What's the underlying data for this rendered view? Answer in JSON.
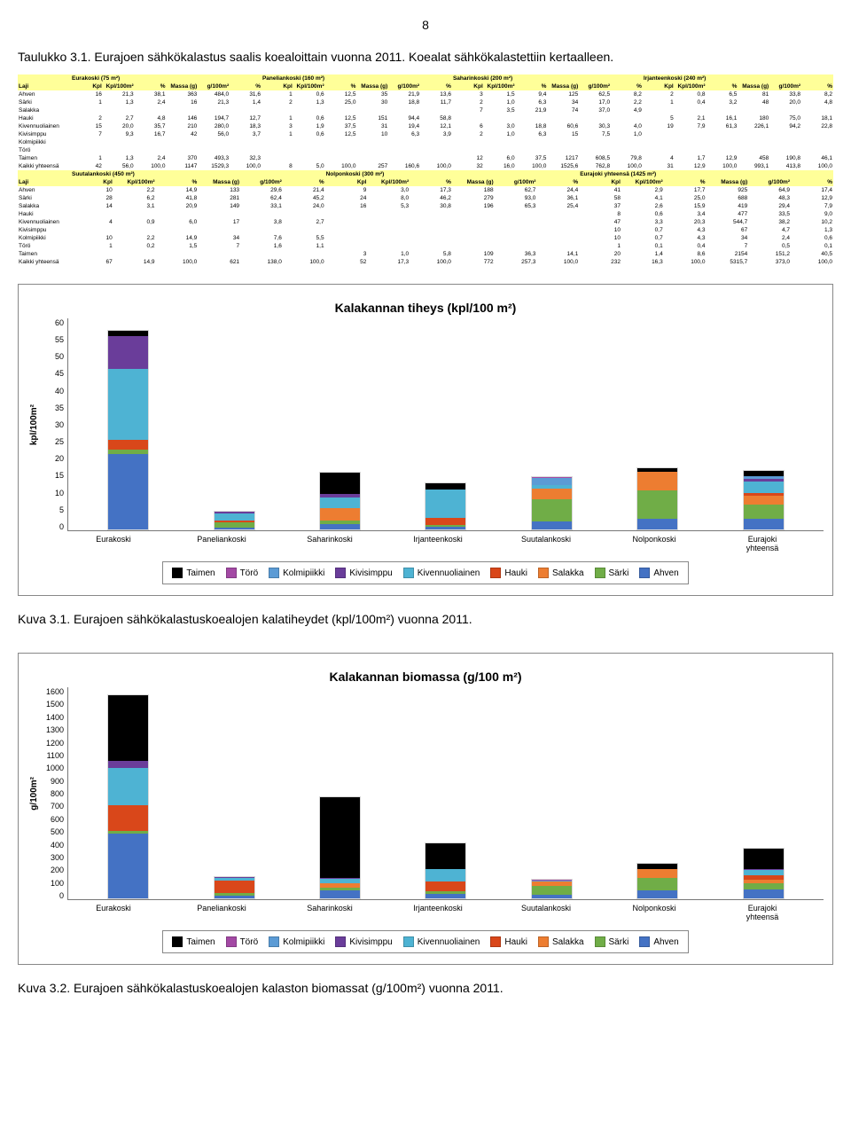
{
  "page_number": "8",
  "table_caption": "Taulukko 3.1. Eurajoen sähkökalastus saalis koealoittain vuonna 2011. Koealat sähkökalastettiin kertaalleen.",
  "figure1_caption": "Kuva 3.1. Eurajoen sähkökalastuskoealojen kalatiheydet (kpl/100m²) vuonna 2011.",
  "figure2_caption": "Kuva 3.2. Eurajoen sähkökalastuskoealojen kalaston biomassat (g/100m²) vuonna 2011.",
  "table": {
    "upper": {
      "groups": [
        {
          "name": "Eurakoski (75 m²)"
        },
        {
          "name": "Paneliankoski (160 m²)"
        },
        {
          "name": "Saharinkoski (200 m²)"
        },
        {
          "name": "Irjanteenkoski (240 m²)"
        }
      ],
      "cols": [
        "Kpl",
        "Kpl/100m²",
        "%",
        "Massa (g)",
        "g/100m²",
        "%"
      ],
      "rows": [
        {
          "label": "Ahven",
          "v": [
            [
              "16",
              "21,3",
              "38,1",
              "363",
              "484,0",
              "31,6"
            ],
            [
              "1",
              "0,6",
              "12,5",
              "35",
              "21,9",
              "13,6"
            ],
            [
              "3",
              "1,5",
              "9,4",
              "125",
              "62,5",
              "8,2"
            ],
            [
              "2",
              "0,8",
              "6,5",
              "81",
              "33,8",
              "8,2"
            ]
          ]
        },
        {
          "label": "Särki",
          "v": [
            [
              "1",
              "1,3",
              "2,4",
              "16",
              "21,3",
              "1,4"
            ],
            [
              "2",
              "1,3",
              "25,0",
              "30",
              "18,8",
              "11,7"
            ],
            [
              "2",
              "1,0",
              "6,3",
              "34",
              "17,0",
              "2,2"
            ],
            [
              "1",
              "0,4",
              "3,2",
              "48",
              "20,0",
              "4,8"
            ]
          ]
        },
        {
          "label": "Salakka",
          "v": [
            [
              "",
              "",
              "",
              "",
              "",
              ""
            ],
            [
              "",
              "",
              "",
              "",
              "",
              ""
            ],
            [
              "7",
              "3,5",
              "21,9",
              "74",
              "37,0",
              "4,9"
            ],
            [
              "",
              "",
              "",
              "",
              "",
              ""
            ]
          ]
        },
        {
          "label": "Hauki",
          "v": [
            [
              "2",
              "2,7",
              "4,8",
              "146",
              "194,7",
              "12,7"
            ],
            [
              "1",
              "0,6",
              "12,5",
              "151",
              "94,4",
              "58,8"
            ],
            [
              "",
              "",
              "",
              "",
              "",
              ""
            ],
            [
              "5",
              "2,1",
              "16,1",
              "180",
              "75,0",
              "18,1"
            ]
          ]
        },
        {
          "label": "Kivennuoliainen",
          "v": [
            [
              "15",
              "20,0",
              "35,7",
              "210",
              "280,0",
              "18,3"
            ],
            [
              "3",
              "1,9",
              "37,5",
              "31",
              "19,4",
              "12,1"
            ],
            [
              "6",
              "3,0",
              "18,8",
              "60,6",
              "30,3",
              "4,0"
            ],
            [
              "19",
              "7,9",
              "61,3",
              "226,1",
              "94,2",
              "22,8"
            ]
          ]
        },
        {
          "label": "Kivisimppu",
          "v": [
            [
              "7",
              "9,3",
              "16,7",
              "42",
              "56,0",
              "3,7"
            ],
            [
              "1",
              "0,6",
              "12,5",
              "10",
              "6,3",
              "3,9"
            ],
            [
              "2",
              "1,0",
              "6,3",
              "15",
              "7,5",
              "1,0"
            ],
            [
              "",
              "",
              "",
              "",
              "",
              ""
            ]
          ]
        },
        {
          "label": "Kolmipiikki",
          "v": [
            [
              "",
              "",
              "",
              "",
              "",
              ""
            ],
            [
              "",
              "",
              "",
              "",
              "",
              ""
            ],
            [
              "",
              "",
              "",
              "",
              "",
              ""
            ],
            [
              "",
              "",
              "",
              "",
              "",
              ""
            ]
          ]
        },
        {
          "label": "Törö",
          "v": [
            [
              "",
              "",
              "",
              "",
              "",
              ""
            ],
            [
              "",
              "",
              "",
              "",
              "",
              ""
            ],
            [
              "",
              "",
              "",
              "",
              "",
              ""
            ],
            [
              "",
              "",
              "",
              "",
              "",
              ""
            ]
          ]
        },
        {
          "label": "Taimen",
          "v": [
            [
              "1",
              "1,3",
              "2,4",
              "370",
              "493,3",
              "32,3"
            ],
            [
              "",
              "",
              "",
              "",
              "",
              ""
            ],
            [
              "12",
              "6,0",
              "37,5",
              "1217",
              "608,5",
              "79,8"
            ],
            [
              "4",
              "1,7",
              "12,9",
              "458",
              "190,8",
              "46,1"
            ]
          ]
        },
        {
          "label": "Kaikki yhteensä",
          "v": [
            [
              "42",
              "56,0",
              "100,0",
              "1147",
              "1529,3",
              "100,0"
            ],
            [
              "8",
              "5,0",
              "100,0",
              "257",
              "160,6",
              "100,0"
            ],
            [
              "32",
              "16,0",
              "100,0",
              "1525,6",
              "762,8",
              "100,0"
            ],
            [
              "31",
              "12,9",
              "100,0",
              "993,1",
              "413,8",
              "100,0"
            ]
          ]
        }
      ]
    },
    "lower": {
      "groups": [
        {
          "name": "Suutalankoski (450 m²)"
        },
        {
          "name": "Nolponkoski (300 m²)"
        },
        {
          "name": "Eurajoki yhteensä (1425 m²)"
        }
      ],
      "cols": [
        "Kpl",
        "Kpl/100m²",
        "%",
        "Massa (g)",
        "g/100m²",
        "%"
      ],
      "rows": [
        {
          "label": "Ahven",
          "v": [
            [
              "10",
              "2,2",
              "14,9",
              "133",
              "29,6",
              "21,4"
            ],
            [
              "9",
              "3,0",
              "17,3",
              "188",
              "62,7",
              "24,4"
            ],
            [
              "41",
              "2,9",
              "17,7",
              "925",
              "64,9",
              "17,4"
            ]
          ]
        },
        {
          "label": "Särki",
          "v": [
            [
              "28",
              "6,2",
              "41,8",
              "281",
              "62,4",
              "45,2"
            ],
            [
              "24",
              "8,0",
              "46,2",
              "279",
              "93,0",
              "36,1"
            ],
            [
              "58",
              "4,1",
              "25,0",
              "688",
              "48,3",
              "12,9"
            ]
          ]
        },
        {
          "label": "Salakka",
          "v": [
            [
              "14",
              "3,1",
              "20,9",
              "149",
              "33,1",
              "24,0"
            ],
            [
              "16",
              "5,3",
              "30,8",
              "196",
              "65,3",
              "25,4"
            ],
            [
              "37",
              "2,6",
              "15,9",
              "419",
              "29,4",
              "7,9"
            ]
          ]
        },
        {
          "label": "Hauki",
          "v": [
            [
              "",
              "",
              "",
              "",
              "",
              ""
            ],
            [
              "",
              "",
              "",
              "",
              "",
              ""
            ],
            [
              "8",
              "0,6",
              "3,4",
              "477",
              "33,5",
              "9,0"
            ]
          ]
        },
        {
          "label": "Kivennuoliainen",
          "v": [
            [
              "4",
              "0,9",
              "6,0",
              "17",
              "3,8",
              "2,7"
            ],
            [
              "",
              "",
              "",
              "",
              "",
              ""
            ],
            [
              "47",
              "3,3",
              "20,3",
              "544,7",
              "38,2",
              "10,2"
            ]
          ]
        },
        {
          "label": "Kivisimppu",
          "v": [
            [
              "",
              "",
              "",
              "",
              "",
              ""
            ],
            [
              "",
              "",
              "",
              "",
              "",
              ""
            ],
            [
              "10",
              "0,7",
              "4,3",
              "67",
              "4,7",
              "1,3"
            ]
          ]
        },
        {
          "label": "Kolmipiikki",
          "v": [
            [
              "10",
              "2,2",
              "14,9",
              "34",
              "7,6",
              "5,5"
            ],
            [
              "",
              "",
              "",
              "",
              "",
              ""
            ],
            [
              "10",
              "0,7",
              "4,3",
              "34",
              "2,4",
              "0,6"
            ]
          ]
        },
        {
          "label": "Törö",
          "v": [
            [
              "1",
              "0,2",
              "1,5",
              "7",
              "1,6",
              "1,1"
            ],
            [
              "",
              "",
              "",
              "",
              "",
              ""
            ],
            [
              "1",
              "0,1",
              "0,4",
              "7",
              "0,5",
              "0,1"
            ]
          ]
        },
        {
          "label": "Taimen",
          "v": [
            [
              "",
              "",
              "",
              "",
              "",
              ""
            ],
            [
              "3",
              "1,0",
              "5,8",
              "109",
              "36,3",
              "14,1"
            ],
            [
              "20",
              "1,4",
              "8,6",
              "2154",
              "151,2",
              "40,5"
            ]
          ]
        },
        {
          "label": "Kaikki yhteensä",
          "v": [
            [
              "67",
              "14,9",
              "100,0",
              "621",
              "138,0",
              "100,0"
            ],
            [
              "52",
              "17,3",
              "100,0",
              "772",
              "257,3",
              "100,0"
            ],
            [
              "232",
              "16,3",
              "100,0",
              "5315,7",
              "373,0",
              "100,0"
            ]
          ]
        }
      ]
    }
  },
  "species": [
    {
      "name": "Taimen",
      "color": "#000000"
    },
    {
      "name": "Törö",
      "color": "#a349a4"
    },
    {
      "name": "Kolmipiikki",
      "color": "#5b9bd5"
    },
    {
      "name": "Kivisimppu",
      "color": "#6a3d9a"
    },
    {
      "name": "Kivennuoliainen",
      "color": "#4eb3d3"
    },
    {
      "name": "Hauki",
      "color": "#d9471a"
    },
    {
      "name": "Salakka",
      "color": "#ed7d31"
    },
    {
      "name": "Särki",
      "color": "#70ad47"
    },
    {
      "name": "Ahven",
      "color": "#4472c4"
    }
  ],
  "chart1": {
    "title": "Kalakannan tiheys (kpl/100 m²)",
    "ylabel": "kpl/100m²",
    "ymax": 60,
    "ytick_step": 5,
    "categories": [
      "Eurakoski",
      "Paneliankoski",
      "Saharinkoski",
      "Irjanteenkoski",
      "Suutalankoski",
      "Nolponkoski",
      "Eurajoki yhteensä"
    ],
    "series": {
      "Ahven": [
        21.3,
        0.6,
        1.5,
        0.8,
        2.2,
        3.0,
        2.9
      ],
      "Särki": [
        1.3,
        1.3,
        1.0,
        0.4,
        6.2,
        8.0,
        4.1
      ],
      "Salakka": [
        0,
        0,
        3.5,
        0,
        3.1,
        5.3,
        2.6
      ],
      "Hauki": [
        2.7,
        0.6,
        0,
        2.1,
        0,
        0,
        0.6
      ],
      "Kivennuoliainen": [
        20.0,
        1.9,
        3.0,
        7.9,
        0.9,
        0,
        3.3
      ],
      "Kivisimppu": [
        9.3,
        0.6,
        1.0,
        0,
        0,
        0,
        0.7
      ],
      "Kolmipiikki": [
        0,
        0,
        0,
        0,
        2.2,
        0,
        0.7
      ],
      "Törö": [
        0,
        0,
        0,
        0,
        0.2,
        0,
        0.1
      ],
      "Taimen": [
        1.3,
        0,
        6.0,
        1.7,
        0,
        1.0,
        1.4
      ]
    }
  },
  "chart2": {
    "title": "Kalakannan biomassa (g/100 m²)",
    "ylabel": "g/100m²",
    "ymax": 1600,
    "ytick_step": 100,
    "categories": [
      "Eurakoski",
      "Paneliankoski",
      "Saharinkoski",
      "Irjanteenkoski",
      "Suutalankoski",
      "Nolponkoski",
      "Eurajoki yhteensä"
    ],
    "series": {
      "Ahven": [
        484.0,
        21.9,
        62.5,
        33.8,
        29.6,
        62.7,
        64.9
      ],
      "Särki": [
        21.3,
        18.8,
        17.0,
        20.0,
        62.4,
        93.0,
        48.3
      ],
      "Salakka": [
        0,
        0,
        37.0,
        0,
        33.1,
        65.3,
        29.4
      ],
      "Hauki": [
        194.7,
        94.4,
        0,
        75.0,
        0,
        0,
        33.5
      ],
      "Kivennuoliainen": [
        280.0,
        19.4,
        30.3,
        94.2,
        3.8,
        0,
        38.2
      ],
      "Kivisimppu": [
        56.0,
        6.3,
        7.5,
        0,
        0,
        0,
        4.7
      ],
      "Kolmipiikki": [
        0,
        0,
        0,
        0,
        7.6,
        0,
        2.4
      ],
      "Törö": [
        0,
        0,
        0,
        0,
        1.6,
        0,
        0.5
      ],
      "Taimen": [
        493.3,
        0,
        608.5,
        190.8,
        0,
        36.3,
        151.2
      ]
    }
  },
  "stack_order": [
    "Ahven",
    "Särki",
    "Salakka",
    "Hauki",
    "Kivennuoliainen",
    "Kivisimppu",
    "Kolmipiikki",
    "Törö",
    "Taimen"
  ]
}
